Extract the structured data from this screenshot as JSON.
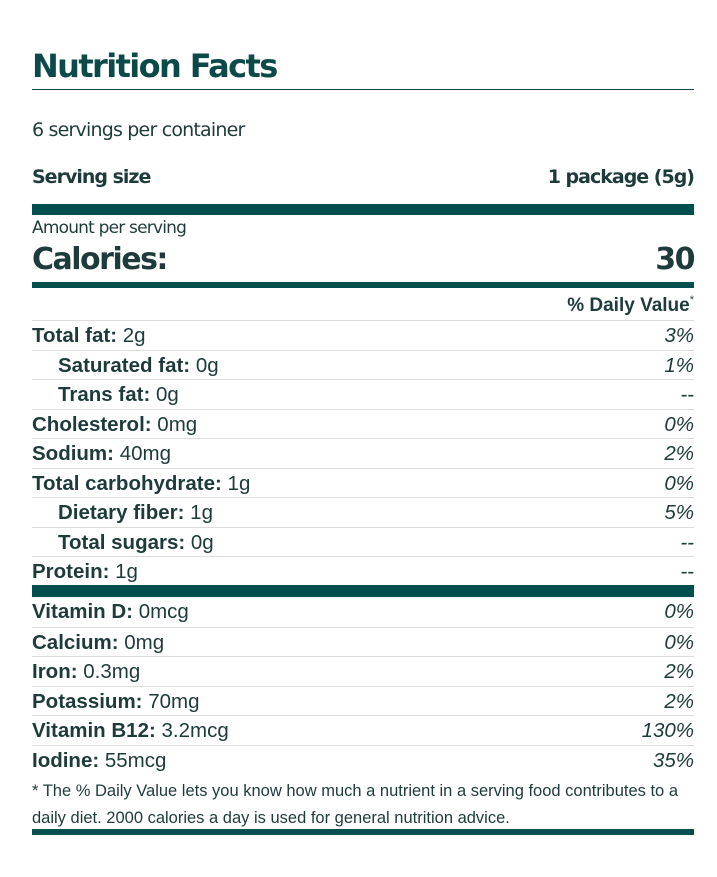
{
  "title": "Nutrition Facts",
  "servings_per_container": "6 servings per container",
  "serving_size": {
    "label": "Serving size",
    "value": "1 package (5g)"
  },
  "amount_per_serving": "Amount per serving",
  "calories": {
    "label": "Calories:",
    "value": "30"
  },
  "daily_value_header": "% Daily Value",
  "daily_value_marker": "*",
  "nutrients": [
    {
      "name": "Total fat:",
      "amount": " 2g",
      "dv": "3%",
      "indent": false
    },
    {
      "name": "Saturated fat:",
      "amount": " 0g",
      "dv": "1%",
      "indent": true
    },
    {
      "name": "Trans fat:",
      "amount": " 0g",
      "dv": "--",
      "indent": true
    },
    {
      "name": "Cholesterol:",
      "amount": " 0mg",
      "dv": "0%",
      "indent": false
    },
    {
      "name": "Sodium:",
      "amount": " 40mg",
      "dv": "2%",
      "indent": false
    },
    {
      "name": "Total carbohydrate:",
      "amount": " 1g",
      "dv": "0%",
      "indent": false
    },
    {
      "name": "Dietary fiber:",
      "amount": " 1g",
      "dv": "5%",
      "indent": true
    },
    {
      "name": "Total sugars:",
      "amount": " 0g",
      "dv": "--",
      "indent": true
    },
    {
      "name": "Protein:",
      "amount": " 1g",
      "dv": "--",
      "indent": false
    }
  ],
  "vitamins": [
    {
      "name": "Vitamin D:",
      "amount": " 0mcg",
      "dv": "0%"
    },
    {
      "name": "Calcium:",
      "amount": " 0mg",
      "dv": "0%"
    },
    {
      "name": "Iron:",
      "amount": " 0.3mg",
      "dv": "2%"
    },
    {
      "name": "Potassium:",
      "amount": " 70mg",
      "dv": "2%"
    },
    {
      "name": "Vitamin B12:",
      "amount": " 3.2mcg",
      "dv": "130%"
    },
    {
      "name": "Iodine:",
      "amount": " 55mcg",
      "dv": "35%"
    }
  ],
  "footnote": "* The % Daily Value lets you know how much a nutrient in a serving food contributes to a daily diet. 2000 calories a day is used for general nutrition advice.",
  "colors": {
    "accent": "#024f4f",
    "text": "#1e3b3b"
  }
}
